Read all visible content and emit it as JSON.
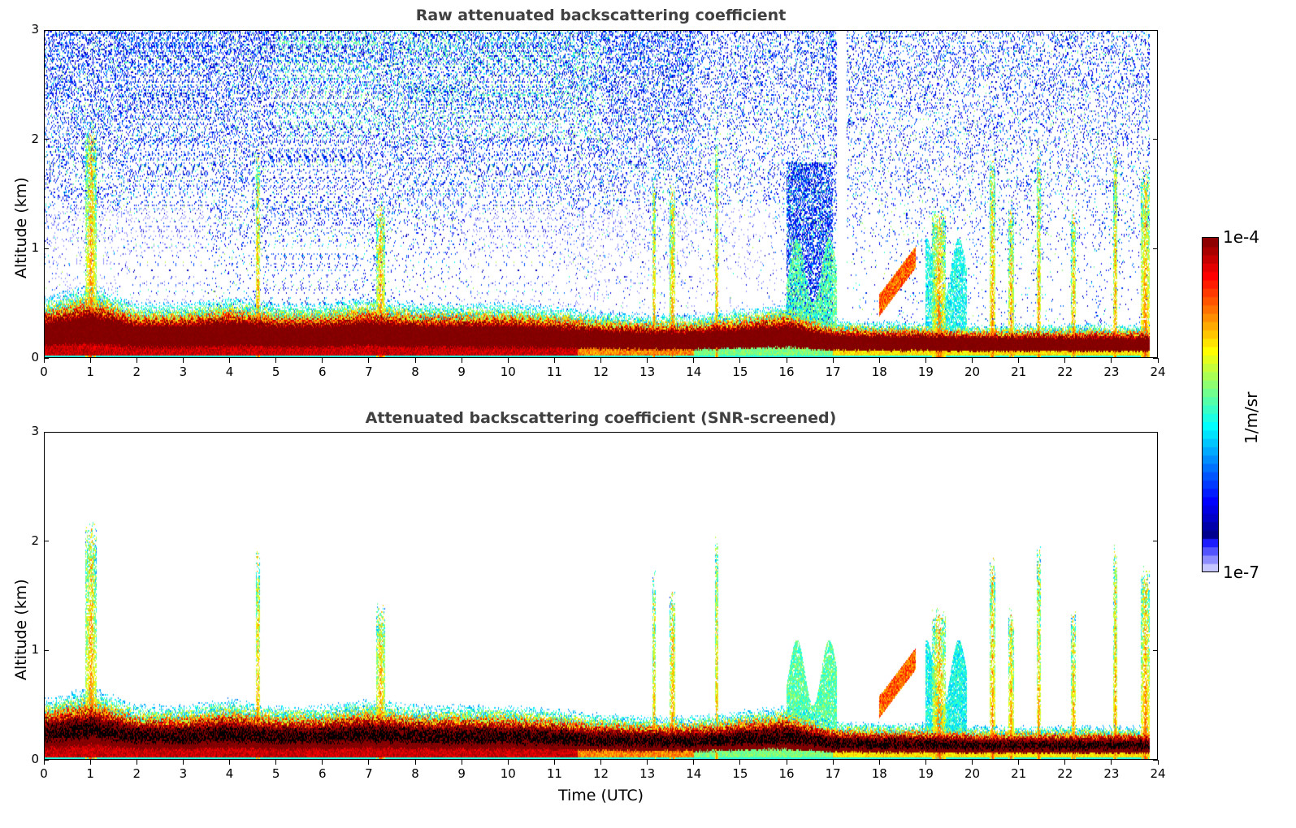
{
  "chart_data": [
    {
      "type": "heatmap",
      "title": "Raw attenuated backscattering coefficient",
      "xlabel": "",
      "ylabel": "Altitude (km)",
      "xlim": [
        0,
        24
      ],
      "ylim": [
        0,
        3
      ],
      "xticks": [
        "0",
        "1",
        "2",
        "3",
        "4",
        "5",
        "6",
        "7",
        "8",
        "9",
        "10",
        "11",
        "12",
        "13",
        "14",
        "15",
        "16",
        "17",
        "18",
        "19",
        "20",
        "21",
        "22",
        "23",
        "24"
      ],
      "yticks": [
        "0",
        "1",
        "2",
        "3"
      ],
      "screened": false
    },
    {
      "type": "heatmap",
      "title": "Attenuated backscattering coefficient (SNR-screened)",
      "xlabel": "Time (UTC)",
      "ylabel": "Altitude (km)",
      "xlim": [
        0,
        24
      ],
      "ylim": [
        0,
        3
      ],
      "xticks": [
        "0",
        "1",
        "2",
        "3",
        "4",
        "5",
        "6",
        "7",
        "8",
        "9",
        "10",
        "11",
        "12",
        "13",
        "14",
        "15",
        "16",
        "17",
        "18",
        "19",
        "20",
        "21",
        "22",
        "23",
        "24"
      ],
      "yticks": [
        "0",
        "1",
        "2",
        "3"
      ],
      "screened": true
    }
  ],
  "colorbar": {
    "label": "1/m/sr",
    "max_label": "1e-4",
    "min_label": "1e-7",
    "range": [
      1e-07,
      0.0001
    ],
    "scale": "log",
    "colormap": "jet"
  },
  "data_model": {
    "data_end_hour": 23.85,
    "boundary_layer_top_km_hourly": [
      0.5,
      0.6,
      0.45,
      0.45,
      0.5,
      0.45,
      0.45,
      0.5,
      0.45,
      0.45,
      0.45,
      0.42,
      0.38,
      0.36,
      0.36,
      0.4,
      0.45,
      0.32,
      0.3,
      0.3,
      0.28,
      0.28,
      0.28,
      0.28,
      0.28
    ],
    "plumes": [
      {
        "time": 1.0,
        "top_km": 2.2,
        "width_h": 0.12
      },
      {
        "time": 4.6,
        "top_km": 1.95,
        "width_h": 0.05
      },
      {
        "time": 7.25,
        "top_km": 1.45,
        "width_h": 0.1
      },
      {
        "time": 13.15,
        "top_km": 1.75,
        "width_h": 0.03
      },
      {
        "time": 13.55,
        "top_km": 1.6,
        "width_h": 0.06
      },
      {
        "time": 14.5,
        "top_km": 2.1,
        "width_h": 0.03
      },
      {
        "time": 19.3,
        "top_km": 1.4,
        "width_h": 0.15
      },
      {
        "time": 20.45,
        "top_km": 1.9,
        "width_h": 0.06
      },
      {
        "time": 20.85,
        "top_km": 1.4,
        "width_h": 0.06
      },
      {
        "time": 21.45,
        "top_km": 2.0,
        "width_h": 0.04
      },
      {
        "time": 22.2,
        "top_km": 1.4,
        "width_h": 0.05
      },
      {
        "time": 23.1,
        "top_km": 2.0,
        "width_h": 0.04
      },
      {
        "time": 23.75,
        "top_km": 1.8,
        "width_h": 0.1
      }
    ],
    "aerosol_layers": [
      {
        "start": 16.0,
        "end": 17.1,
        "top_km": 1.0,
        "log_value": -5.7
      },
      {
        "start": 19.0,
        "end": 19.9,
        "top_km": 1.0,
        "log_value": -5.9
      },
      {
        "start": 18.0,
        "end": 18.8,
        "top_km": 1.0,
        "log_value": -4.6
      }
    ],
    "noise_gap": [
      17.1,
      17.3
    ]
  }
}
